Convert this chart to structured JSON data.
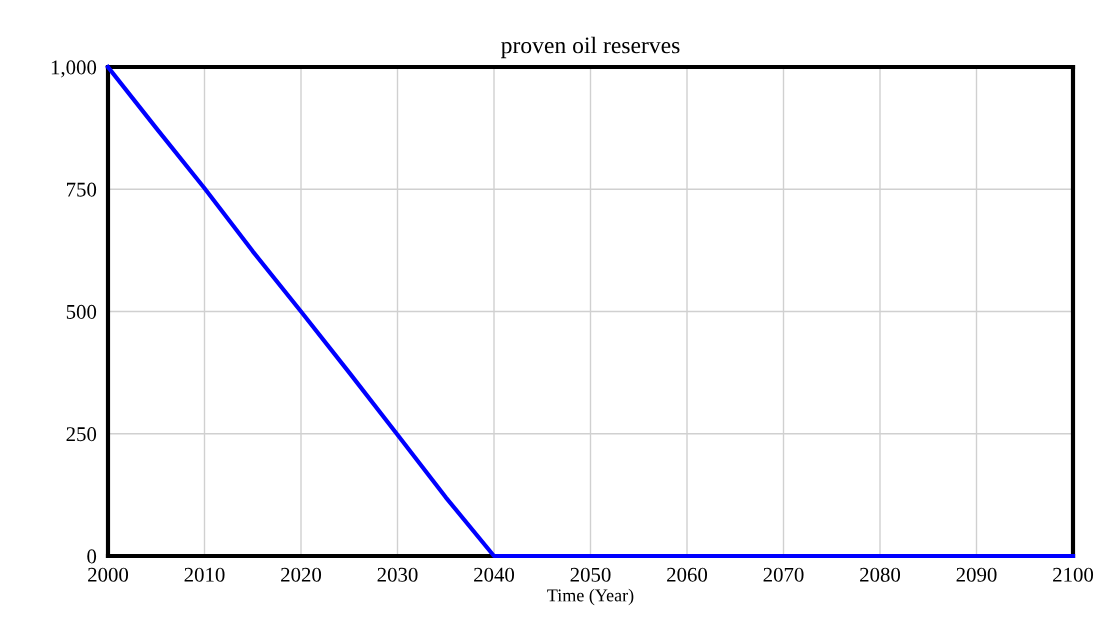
{
  "chart_data": {
    "type": "line",
    "title": "proven oil reserves",
    "xlabel": "Time (Year)",
    "x": [
      2000,
      2005,
      2010,
      2015,
      2020,
      2025,
      2030,
      2035,
      2040,
      2100
    ],
    "series": [
      {
        "color": "#0000ff",
        "values": [
          1000,
          875,
          752,
          623,
          500,
          375,
          248,
          120,
          0,
          0
        ]
      }
    ],
    "xlim": [
      2000,
      2100
    ],
    "xticks": [
      2000,
      2010,
      2020,
      2030,
      2040,
      2050,
      2060,
      2070,
      2080,
      2090,
      2100
    ],
    "ylim": [
      0,
      1000
    ],
    "yticks": [
      0,
      250,
      500,
      750,
      {
        "value": 1000,
        "label": "1,000"
      }
    ],
    "grid": true,
    "legend": false,
    "marker": "none",
    "line_style": "solid"
  }
}
